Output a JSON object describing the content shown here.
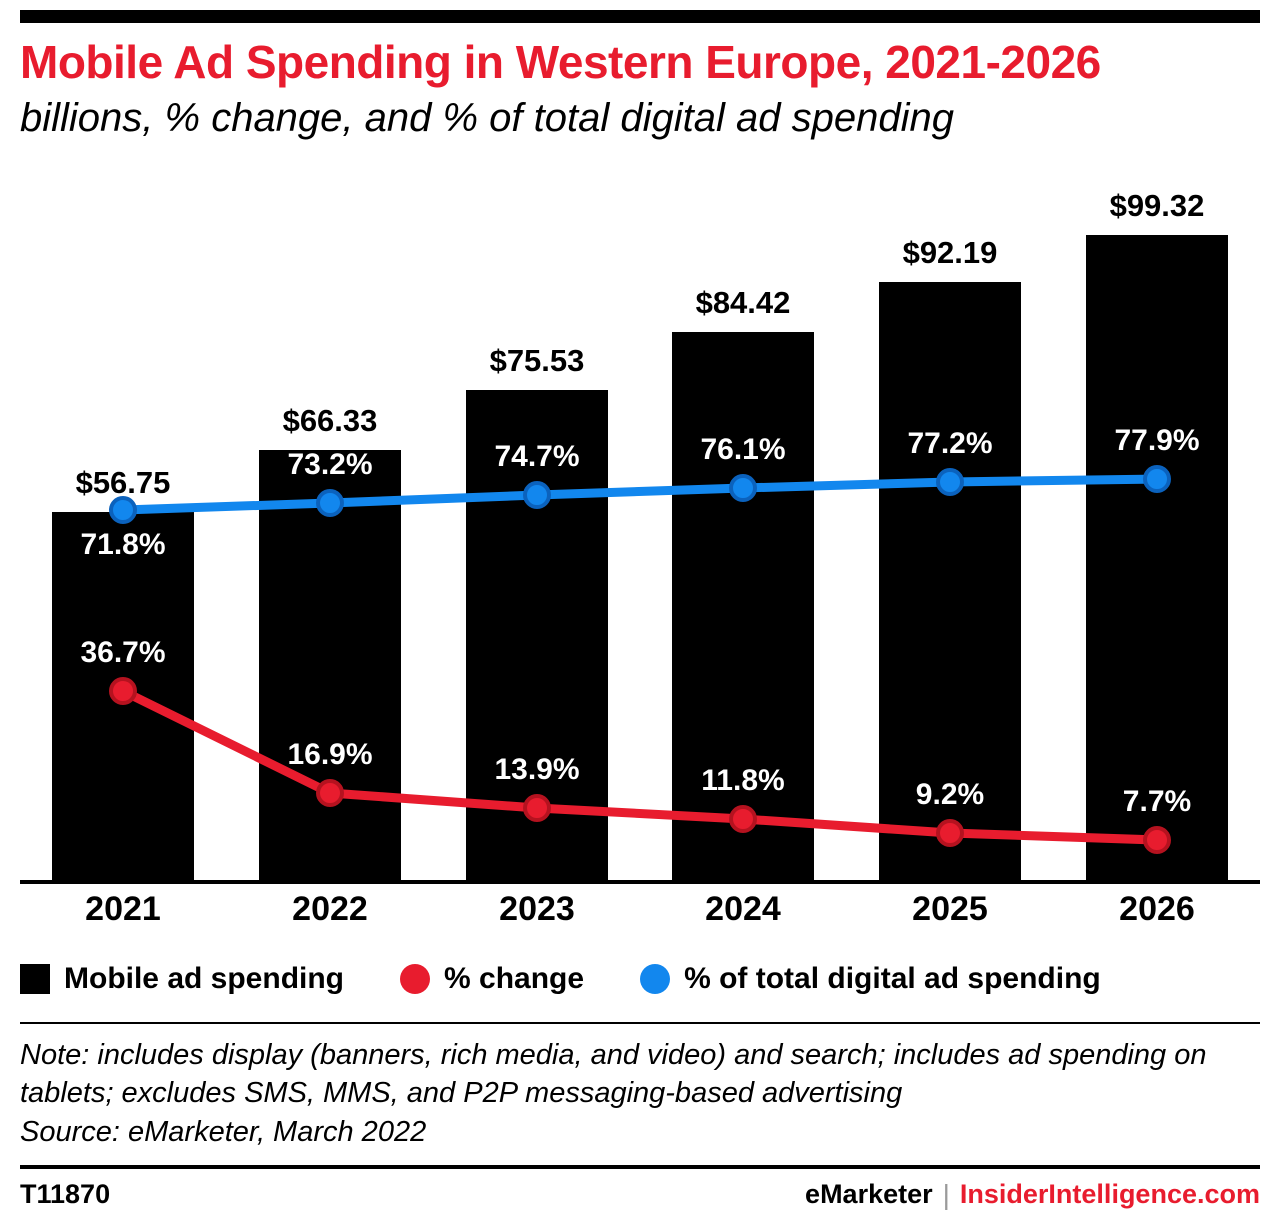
{
  "colors": {
    "accent_red": "#e81c2e",
    "accent_blue": "#1287ee",
    "bar_black": "#000000"
  },
  "header": {
    "title": "Mobile Ad Spending in Western Europe, 2021-2026",
    "subtitle": "billions, % change, and % of total digital ad spending"
  },
  "chart_data": {
    "type": "bar",
    "title": "Mobile Ad Spending in Western Europe, 2021-2026",
    "subtitle": "billions, % change, and % of total digital ad spending",
    "categories": [
      "2021",
      "2022",
      "2023",
      "2024",
      "2025",
      "2026"
    ],
    "series": [
      {
        "name": "Mobile ad spending",
        "type": "bar",
        "unit": "billions of $",
        "color": "#000000",
        "values": [
          56.75,
          66.33,
          75.53,
          84.42,
          92.19,
          99.32
        ],
        "labels": [
          "$56.75",
          "$66.33",
          "$75.53",
          "$84.42",
          "$92.19",
          "$99.32"
        ]
      },
      {
        "name": "% change",
        "type": "line",
        "unit": "%",
        "color": "#e81c2e",
        "marker_stroke": "#b5121f",
        "values": [
          36.7,
          16.9,
          13.9,
          11.8,
          9.2,
          7.7
        ],
        "labels": [
          "36.7%",
          "16.9%",
          "13.9%",
          "11.8%",
          "9.2%",
          "7.7%"
        ],
        "label_side": [
          "above",
          "above",
          "above",
          "above",
          "above",
          "above"
        ]
      },
      {
        "name": "% of total digital ad spending",
        "type": "line",
        "unit": "%",
        "color": "#1287ee",
        "marker_stroke": "#0b62bd",
        "values": [
          71.8,
          73.2,
          74.7,
          76.1,
          77.2,
          77.9
        ],
        "labels": [
          "71.8%",
          "73.2%",
          "74.7%",
          "76.1%",
          "77.2%",
          "77.9%"
        ],
        "label_side": [
          "below",
          "above",
          "above",
          "above",
          "above",
          "above"
        ]
      }
    ],
    "ylim_bars": [
      0,
      107.5
    ],
    "ylim_pct": [
      0,
      100
    ],
    "grid": false,
    "legend_position": "bottom",
    "value_labels_shown": true
  },
  "legend": {
    "items": [
      {
        "label": "Mobile ad spending",
        "color": "#000000",
        "shape": "square"
      },
      {
        "label": "% change",
        "color": "#e81c2e",
        "shape": "circle"
      },
      {
        "label": "% of total digital ad spending",
        "color": "#1287ee",
        "shape": "circle"
      }
    ]
  },
  "note": {
    "text": "Note: includes display (banners, rich media, and video) and search; includes ad spending on tablets; excludes SMS, MMS, and P2P messaging-based advertising",
    "source": "Source: eMarketer, March 2022"
  },
  "footer": {
    "chart_id": "T11870",
    "brand": "eMarketer",
    "separator": "|",
    "site": "InsiderIntelligence.com"
  }
}
